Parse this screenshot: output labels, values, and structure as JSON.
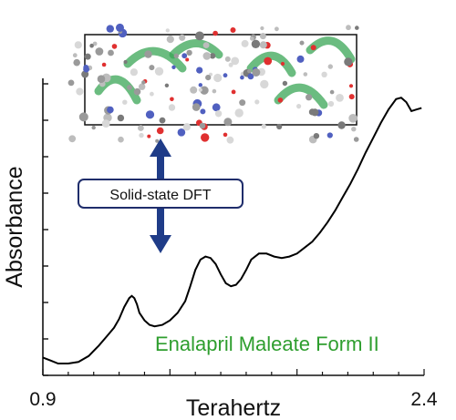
{
  "chart_data": {
    "type": "line",
    "title": "",
    "xlabel": "Terahertz",
    "ylabel": "Absorbance",
    "xlim": [
      0.9,
      2.4
    ],
    "x_tick_labels": [
      "0.9",
      "2.4"
    ],
    "y_ticks_labeled": false,
    "grid": false,
    "series": [
      {
        "name": "Enalapril Maleate Form II",
        "color": "#2e9e2e",
        "x": [
          0.9,
          0.93,
          0.96,
          1.0,
          1.04,
          1.08,
          1.12,
          1.15,
          1.18,
          1.2,
          1.22,
          1.24,
          1.25,
          1.26,
          1.27,
          1.28,
          1.3,
          1.32,
          1.34,
          1.37,
          1.4,
          1.43,
          1.46,
          1.48,
          1.5,
          1.52,
          1.54,
          1.56,
          1.58,
          1.6,
          1.62,
          1.64,
          1.66,
          1.68,
          1.7,
          1.72,
          1.75,
          1.78,
          1.81,
          1.84,
          1.87,
          1.9,
          1.93,
          1.96,
          1.99,
          2.02,
          2.05,
          2.08,
          2.11,
          2.14,
          2.17,
          2.2,
          2.23,
          2.26,
          2.29,
          2.31,
          2.33,
          2.35,
          2.37,
          2.39
        ],
        "y": [
          0.12,
          0.1,
          0.08,
          0.08,
          0.09,
          0.13,
          0.2,
          0.26,
          0.32,
          0.38,
          0.46,
          0.52,
          0.535,
          0.52,
          0.48,
          0.42,
          0.37,
          0.34,
          0.33,
          0.34,
          0.37,
          0.42,
          0.5,
          0.6,
          0.71,
          0.78,
          0.8,
          0.79,
          0.75,
          0.68,
          0.62,
          0.6,
          0.61,
          0.65,
          0.71,
          0.78,
          0.82,
          0.82,
          0.8,
          0.79,
          0.8,
          0.82,
          0.86,
          0.9,
          0.96,
          1.03,
          1.11,
          1.2,
          1.29,
          1.39,
          1.5,
          1.6,
          1.7,
          1.79,
          1.86,
          1.87,
          1.84,
          1.78,
          1.79,
          1.8
        ]
      }
    ],
    "ylim": [
      0,
      2.0
    ]
  },
  "annotations": {
    "callout_label": "Solid-state DFT",
    "series_label": "Enalapril Maleate Form II"
  },
  "colors": {
    "curve": "#000000",
    "series_label": "#2e9e2e",
    "callout_border": "#1f2d6b",
    "arrow": "#1f3c88",
    "ribbon": "#3aa655"
  }
}
